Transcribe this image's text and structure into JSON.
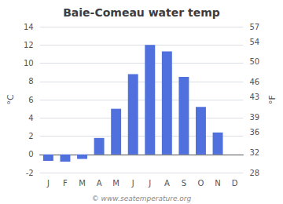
{
  "chart_data": {
    "type": "bar",
    "title": "Baie-Comeau water temp",
    "categories": [
      "J",
      "F",
      "M",
      "A",
      "M",
      "J",
      "J",
      "A",
      "S",
      "O",
      "N",
      "D"
    ],
    "values": [
      -0.7,
      -0.8,
      -0.5,
      1.8,
      5.0,
      8.8,
      12.0,
      11.3,
      8.5,
      5.2,
      2.4,
      0.0
    ],
    "ylim": [
      -2,
      14
    ],
    "yticks": [
      -2,
      0,
      2,
      4,
      6,
      8,
      10,
      12,
      14
    ],
    "y2lim": [
      28,
      57
    ],
    "y2ticks": [
      28,
      32,
      36,
      39,
      43,
      46,
      50,
      54,
      57
    ],
    "ylabel": "°C",
    "y2label": "°F",
    "grid": true,
    "annotations": [
      "© www.seatemperature.org"
    ]
  }
}
